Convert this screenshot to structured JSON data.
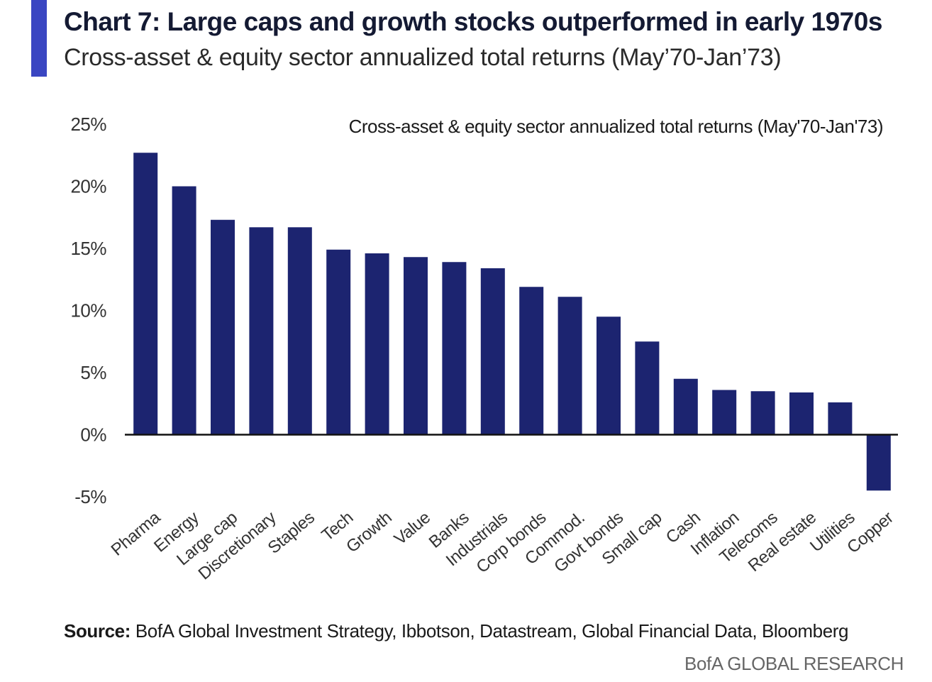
{
  "header": {
    "title": "Chart 7: Large caps and growth stocks outperformed in early 1970s",
    "subtitle": "Cross-asset & equity sector annualized total returns (May’70-Jan’73)"
  },
  "footer": {
    "source_label": "Source:",
    "source_text": "BofA Global Investment Strategy, Ibbotson, Datastream, Global Financial Data, Bloomberg",
    "brand": "BofA GLOBAL RESEARCH"
  },
  "colors": {
    "bar": "#1c2470",
    "accent": "#3a46c2"
  },
  "chart_data": {
    "type": "bar",
    "title": "Cross-asset & equity sector annualized total returns (May'70-Jan'73)",
    "title_position": "top-right",
    "xlabel": "",
    "ylabel": "",
    "ylim": [
      -5,
      25
    ],
    "yticks": [
      25,
      20,
      15,
      10,
      5,
      0,
      -5
    ],
    "ytick_labels": [
      "25%",
      "20%",
      "15%",
      "10%",
      "5%",
      "0%",
      "-5%"
    ],
    "grid": false,
    "categories": [
      "Pharma",
      "Energy",
      "Large cap",
      "Discretionary",
      "Staples",
      "Tech",
      "Growth",
      "Value",
      "Banks",
      "Industrials",
      "Corp bonds",
      "Commod.",
      "Govt bonds",
      "Small cap",
      "Cash",
      "Inflation",
      "Telecoms",
      "Real estate",
      "Utilities",
      "Copper"
    ],
    "values": [
      22.7,
      20.0,
      17.3,
      16.7,
      16.7,
      14.9,
      14.6,
      14.3,
      13.9,
      13.4,
      11.9,
      11.1,
      9.5,
      7.5,
      4.5,
      3.6,
      3.5,
      3.4,
      2.6,
      -4.5
    ]
  }
}
